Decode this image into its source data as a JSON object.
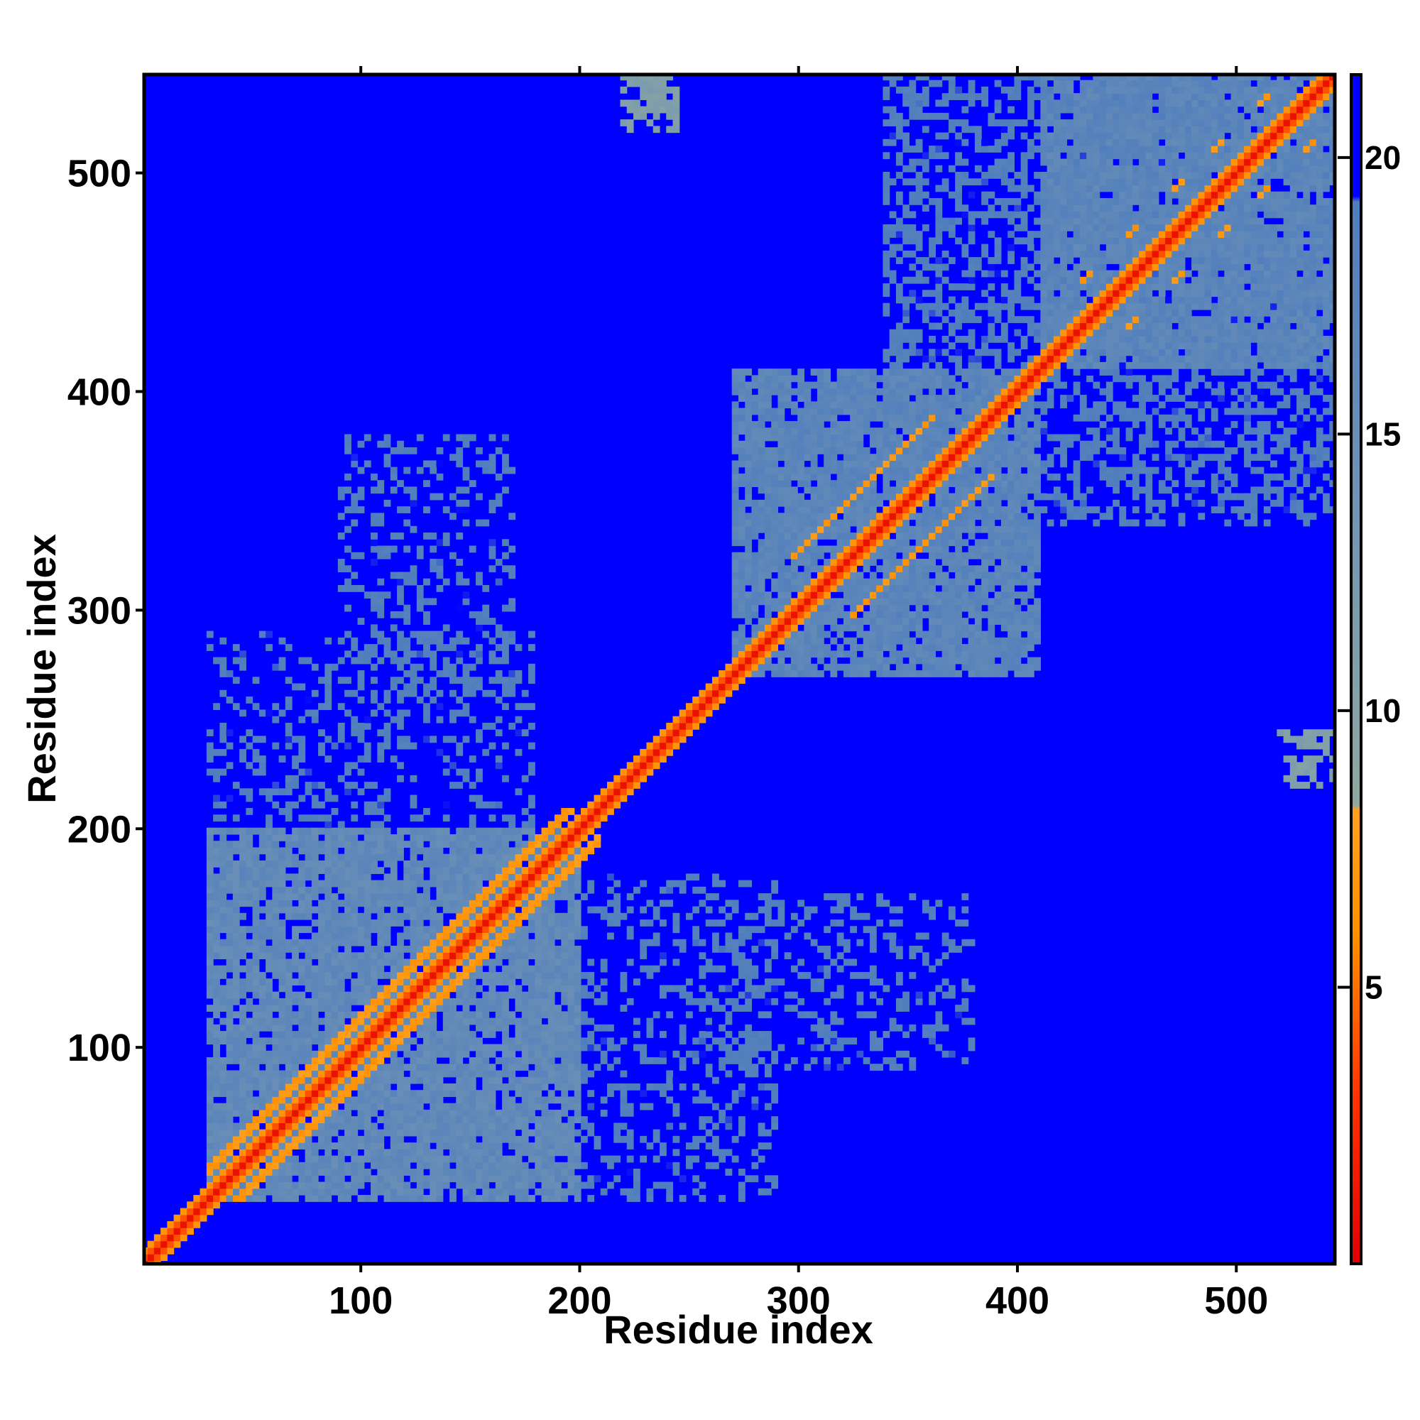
{
  "chart_data": {
    "type": "heatmap",
    "title": "",
    "xlabel": "Residue index",
    "ylabel": "Residue index",
    "xlim": [
      1,
      545
    ],
    "ylim": [
      1,
      545
    ],
    "x_ticks": [
      100,
      200,
      300,
      400,
      500
    ],
    "y_ticks": [
      100,
      200,
      300,
      400,
      500
    ],
    "colorbar": {
      "range": [
        0,
        21.5
      ],
      "ticks": [
        5,
        10,
        15,
        20
      ],
      "colors": {
        "low": "#e8000b",
        "mid": "#ff8c00",
        "transition": "#f3b040",
        "contact": "#5b8ab8",
        "far": "#0000ff"
      },
      "stops": [
        {
          "value": 0,
          "color": "#e00000"
        },
        {
          "value": 3,
          "color": "#ff3300"
        },
        {
          "value": 6,
          "color": "#ff9000"
        },
        {
          "value": 8.2,
          "color": "#ffa020"
        },
        {
          "value": 8.3,
          "color": "#8fa8a0"
        },
        {
          "value": 14,
          "color": "#6f93b5"
        },
        {
          "value": 19.2,
          "color": "#4f7dbd"
        },
        {
          "value": 19.3,
          "color": "#0000ff"
        },
        {
          "value": 21.5,
          "color": "#0000ff"
        }
      ]
    },
    "domains": [
      {
        "name": "block-1",
        "range": [
          30,
          200
        ],
        "dist": 15
      },
      {
        "name": "block-2",
        "range": [
          270,
          410
        ],
        "dist": 16
      },
      {
        "name": "block-3",
        "range": [
          410,
          545
        ],
        "dist": 16
      },
      {
        "name": "block-2-3",
        "range": [
          340,
          545
        ],
        "dist": 18
      }
    ],
    "off_diagonal_patches": [
      {
        "x": [
          200,
          290
        ],
        "y": [
          30,
          180
        ],
        "dist": 18
      },
      {
        "x": [
          90,
          170
        ],
        "y": [
          260,
          380
        ],
        "dist": 18
      },
      {
        "x": [
          220,
          245
        ],
        "y": [
          525,
          545
        ],
        "dist": 10
      },
      {
        "x": [
          520,
          545
        ],
        "y": [
          220,
          245
        ],
        "dist": 10
      }
    ],
    "diagonal_contact_offset": 14,
    "background_value": 21
  }
}
